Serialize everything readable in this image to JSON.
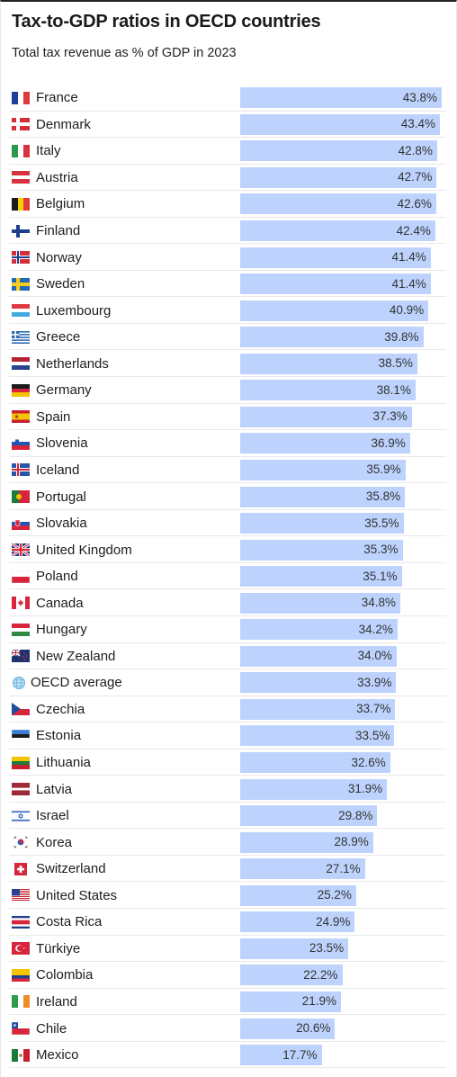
{
  "chart_data": {
    "type": "bar",
    "orientation": "horizontal",
    "title": "Tax-to-GDP ratios in OECD countries",
    "subtitle": "Total tax revenue as % of GDP in 2023",
    "value_suffix": "%",
    "bar_color": "#bdd3fd",
    "xlim": [
      0,
      43.8
    ],
    "categories": [
      "France",
      "Denmark",
      "Italy",
      "Austria",
      "Belgium",
      "Finland",
      "Norway",
      "Sweden",
      "Luxembourg",
      "Greece",
      "Netherlands",
      "Germany",
      "Spain",
      "Slovenia",
      "Iceland",
      "Portugal",
      "Slovakia",
      "United Kingdom",
      "Poland",
      "Canada",
      "Hungary",
      "New Zealand",
      "OECD average",
      "Czechia",
      "Estonia",
      "Lithuania",
      "Latvia",
      "Israel",
      "Korea",
      "Switzerland",
      "United States",
      "Costa Rica",
      "Türkiye",
      "Colombia",
      "Ireland",
      "Chile",
      "Mexico"
    ],
    "values": [
      43.8,
      43.4,
      42.8,
      42.7,
      42.6,
      42.4,
      41.4,
      41.4,
      40.9,
      39.8,
      38.5,
      38.1,
      37.3,
      36.9,
      35.9,
      35.8,
      35.5,
      35.3,
      35.1,
      34.8,
      34.2,
      34.0,
      33.9,
      33.7,
      33.5,
      32.6,
      31.9,
      29.8,
      28.9,
      27.1,
      25.2,
      24.9,
      23.5,
      22.2,
      21.9,
      20.6,
      17.7
    ],
    "labels": [
      "43.8%",
      "43.4%",
      "42.8%",
      "42.7%",
      "42.6%",
      "42.4%",
      "41.4%",
      "41.4%",
      "40.9%",
      "39.8%",
      "38.5%",
      "38.1%",
      "37.3%",
      "36.9%",
      "35.9%",
      "35.8%",
      "35.5%",
      "35.3%",
      "35.1%",
      "34.8%",
      "34.2%",
      "34.0%",
      "33.9%",
      "33.7%",
      "33.5%",
      "32.6%",
      "31.9%",
      "29.8%",
      "28.9%",
      "27.1%",
      "25.2%",
      "24.9%",
      "23.5%",
      "22.2%",
      "21.9%",
      "20.6%",
      "17.7%"
    ],
    "icons": [
      "flag-france-icon",
      "flag-denmark-icon",
      "flag-italy-icon",
      "flag-austria-icon",
      "flag-belgium-icon",
      "flag-finland-icon",
      "flag-norway-icon",
      "flag-sweden-icon",
      "flag-luxembourg-icon",
      "flag-greece-icon",
      "flag-netherlands-icon",
      "flag-germany-icon",
      "flag-spain-icon",
      "flag-slovenia-icon",
      "flag-iceland-icon",
      "flag-portugal-icon",
      "flag-slovakia-icon",
      "flag-united-kingdom-icon",
      "flag-poland-icon",
      "flag-canada-icon",
      "flag-hungary-icon",
      "flag-new-zealand-icon",
      "globe-icon",
      "flag-czechia-icon",
      "flag-estonia-icon",
      "flag-lithuania-icon",
      "flag-latvia-icon",
      "flag-israel-icon",
      "flag-korea-icon",
      "flag-switzerland-icon",
      "flag-united-states-icon",
      "flag-costa-rica-icon",
      "flag-turkiye-icon",
      "flag-colombia-icon",
      "flag-ireland-icon",
      "flag-chile-icon",
      "flag-mexico-icon"
    ]
  }
}
